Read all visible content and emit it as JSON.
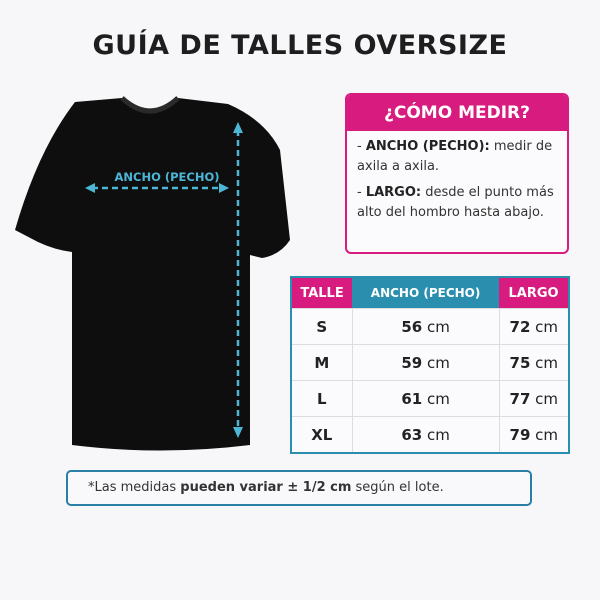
{
  "title": "GUÍA DE TALLES OVERSIZE",
  "shirt": {
    "width_label": "ANCHO (PECHO)",
    "shirt_color": "#0e0e0e",
    "arrow_color": "#4db6d6"
  },
  "colors": {
    "accent_pink": "#d81b7f",
    "accent_teal": "#2a8fae"
  },
  "how_to": {
    "heading": "¿CÓMO MEDIR?",
    "items": [
      {
        "term": "ANCHO (PECHO):",
        "text": "medir de axila a axila."
      },
      {
        "term": "LARGO:",
        "text": "desde el punto más alto del hombro hasta abajo."
      }
    ]
  },
  "table": {
    "headers": [
      "TALLE",
      "ANCHO (PECHO)",
      "LARGO"
    ],
    "unit": "cm",
    "rows": [
      {
        "size": "S",
        "ancho": "56",
        "largo": "72"
      },
      {
        "size": "M",
        "ancho": "59",
        "largo": "75"
      },
      {
        "size": "L",
        "ancho": "61",
        "largo": "77"
      },
      {
        "size": "XL",
        "ancho": "63",
        "largo": "79"
      }
    ]
  },
  "note": {
    "prefix": "*Las medidas ",
    "bold": "pueden variar ± 1/2 cm",
    "suffix": " según el lote."
  }
}
